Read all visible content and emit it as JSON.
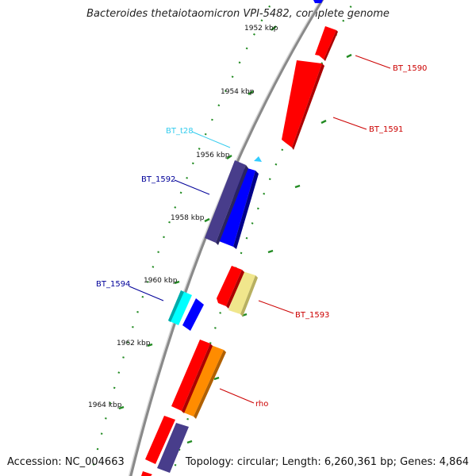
{
  "title": "Bacteroides thetaiotaomicron VPI-5482, complete genome",
  "accession": "Accession: NC_004663",
  "summary": "Topology: circular; Length: 6,260,361 bp; Genes: 4,864",
  "ticks": [
    {
      "label": "1952 kbp",
      "major": true
    },
    {
      "label": "1954 kbp",
      "major": true
    },
    {
      "label": "1956 kbp",
      "major": true
    },
    {
      "label": "1958 kbp",
      "major": true
    },
    {
      "label": "1960 kbp",
      "major": true
    },
    {
      "label": "1962 kbp",
      "major": true
    },
    {
      "label": "1964 kbp",
      "major": true
    }
  ],
  "genes": [
    {
      "label": "BT_1590",
      "color": "#cc0000",
      "fill": "#ff0000"
    },
    {
      "label": "BT_1591",
      "color": "#cc0000",
      "fill": "#ff0000"
    },
    {
      "label": "BT_t28",
      "color": "#33ccee",
      "fill": "#33ccff"
    },
    {
      "label": "BT_1592",
      "color": "#000099",
      "fill": "#483d8b"
    },
    {
      "label": "BT_1593",
      "color": "#cc0000",
      "fill": "#f0e68c"
    },
    {
      "label": "BT_1594",
      "color": "#000099",
      "fill": "#00ffff"
    },
    {
      "label": "rho",
      "color": "#cc0000",
      "fill": "#ff8c00"
    }
  ],
  "colors": {
    "backbone": "#808080",
    "tick": "#228b22",
    "forward_strand": "#ff0000",
    "reverse_strand": "#0000ff"
  }
}
